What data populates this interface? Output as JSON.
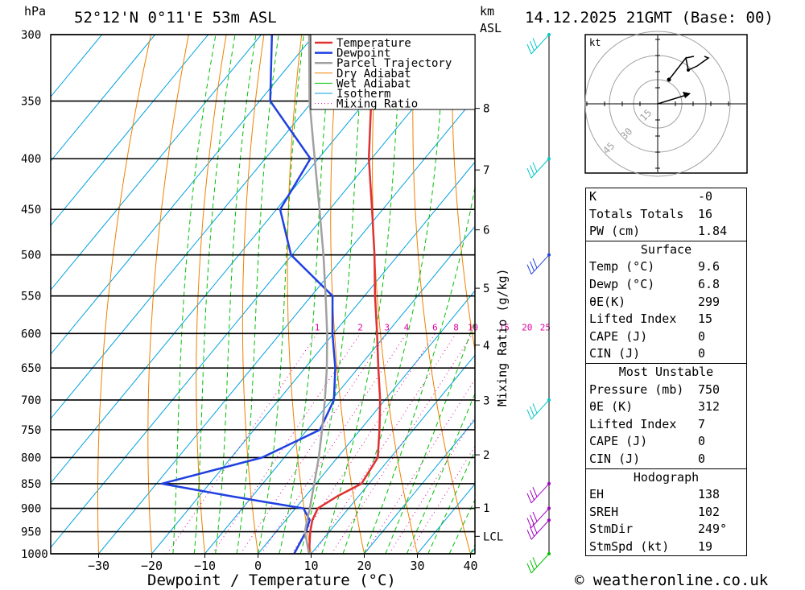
{
  "header": {
    "hpa_label": "hPa",
    "location": "52°12'N  0°11'E  53m  ASL",
    "km_label": "km",
    "asl_label": "ASL",
    "datetime": "14.12.2025  21GMT  (Base: 00)"
  },
  "chart_data": {
    "type": "skew-t",
    "title": "52°12'N  0°11'E  53m  ASL",
    "xlabel": "Dewpoint / Temperature (°C)",
    "ylabel": "hPa",
    "x_ticks": [
      -30,
      -20,
      -10,
      0,
      10,
      20,
      30,
      40
    ],
    "pressure_levels": [
      300,
      350,
      400,
      450,
      500,
      550,
      600,
      650,
      700,
      750,
      800,
      850,
      900,
      950,
      1000
    ],
    "km_ticks": [
      {
        "label": "8",
        "km": 8
      },
      {
        "label": "7",
        "km": 7
      },
      {
        "label": "6",
        "km": 6
      },
      {
        "label": "5",
        "km": 5
      },
      {
        "label": "4",
        "km": 4
      },
      {
        "label": "3",
        "km": 3
      },
      {
        "label": "2",
        "km": 2
      },
      {
        "label": "1",
        "km": 1
      },
      {
        "label": "LCL",
        "km": 0.45
      }
    ],
    "mixing_ratio_labels": [
      "1",
      "2",
      "3",
      "4",
      "6",
      "8",
      "10",
      "15",
      "20",
      "25"
    ],
    "mixing_ratio_axis_label": "Mixing Ratio (g/kg)",
    "legend": [
      {
        "name": "Temperature",
        "color": "#e03030"
      },
      {
        "name": "Dewpoint",
        "color": "#2040e0"
      },
      {
        "name": "Parcel Trajectory",
        "color": "#a0a0a0"
      },
      {
        "name": "Dry Adiabat",
        "color": "#f08000"
      },
      {
        "name": "Wet Adiabat",
        "color": "#00c000"
      },
      {
        "name": "Isotherm",
        "color": "#00a0e0"
      },
      {
        "name": "Mixing Ratio",
        "color": "#e000a0"
      }
    ],
    "series": [
      {
        "name": "Temperature",
        "points": [
          [
            1000,
            9.6
          ],
          [
            950,
            6.4
          ],
          [
            925,
            5.0
          ],
          [
            900,
            4.2
          ],
          [
            875,
            6.0
          ],
          [
            850,
            8.6
          ],
          [
            800,
            7.6
          ],
          [
            750,
            3.6
          ],
          [
            700,
            -0.9
          ],
          [
            650,
            -6.2
          ],
          [
            600,
            -11.8
          ],
          [
            550,
            -18.0
          ],
          [
            500,
            -24.5
          ],
          [
            450,
            -32.0
          ],
          [
            400,
            -40.5
          ],
          [
            350,
            -49.0
          ],
          [
            300,
            -57.0
          ]
        ]
      },
      {
        "name": "Dewpoint",
        "points": [
          [
            1000,
            6.8
          ],
          [
            950,
            5.6
          ],
          [
            925,
            4.5
          ],
          [
            900,
            1.5
          ],
          [
            875,
            -14.0
          ],
          [
            850,
            -29.0
          ],
          [
            800,
            -14.2
          ],
          [
            750,
            -7.6
          ],
          [
            700,
            -9.6
          ],
          [
            650,
            -14.3
          ],
          [
            600,
            -20.2
          ],
          [
            550,
            -26.0
          ],
          [
            500,
            -40.2
          ],
          [
            450,
            -49.3
          ],
          [
            400,
            -51.5
          ],
          [
            350,
            -68.0
          ],
          [
            300,
            -78.0
          ]
        ]
      },
      {
        "name": "Parcel Trajectory",
        "points": [
          [
            1000,
            9.6
          ],
          [
            950,
            5.4
          ],
          [
            925,
            4.0
          ],
          [
            900,
            2.7
          ],
          [
            850,
            -0.3
          ],
          [
            800,
            -3.5
          ],
          [
            750,
            -7.2
          ],
          [
            700,
            -11.3
          ],
          [
            650,
            -15.9
          ],
          [
            600,
            -21.2
          ],
          [
            550,
            -27.3
          ],
          [
            500,
            -34.1
          ],
          [
            450,
            -41.9
          ],
          [
            400,
            -50.7
          ],
          [
            350,
            -60.6
          ],
          [
            300,
            -71.0
          ]
        ]
      }
    ],
    "wind_barbs": [
      {
        "pressure": 300,
        "color": "#00c8c8"
      },
      {
        "pressure": 400,
        "color": "#00c8c8"
      },
      {
        "pressure": 500,
        "color": "#2040e0"
      },
      {
        "pressure": 700,
        "color": "#00c8c8"
      },
      {
        "pressure": 850,
        "color": "#a000c0"
      },
      {
        "pressure": 900,
        "color": "#a000c0"
      },
      {
        "pressure": 925,
        "color": "#a000c0"
      },
      {
        "pressure": 1000,
        "color": "#00c000"
      }
    ]
  },
  "hodograph": {
    "unit_label": "kt",
    "ring_labels": [
      "15",
      "30",
      "45"
    ]
  },
  "indices": {
    "k_label": "K",
    "k_value": "-0",
    "tt_label": "Totals Totals",
    "tt_value": "16",
    "pw_label": "PW (cm)",
    "pw_value": "1.84"
  },
  "surface": {
    "title": "Surface",
    "temp_label": "Temp (°C)",
    "temp_value": "9.6",
    "dewp_label": "Dewp (°C)",
    "dewp_value": "6.8",
    "thetae_label": "θE(K)",
    "thetae_value": "299",
    "li_label": "Lifted Index",
    "li_value": "15",
    "cape_label": "CAPE (J)",
    "cape_value": "0",
    "cin_label": "CIN (J)",
    "cin_value": "0"
  },
  "most_unstable": {
    "title": "Most Unstable",
    "pressure_label": "Pressure (mb)",
    "pressure_value": "750",
    "thetae_label": "θE (K)",
    "thetae_value": "312",
    "li_label": "Lifted Index",
    "li_value": "7",
    "cape_label": "CAPE (J)",
    "cape_value": "0",
    "cin_label": "CIN (J)",
    "cin_value": "0"
  },
  "hodograph_table": {
    "title": "Hodograph",
    "eh_label": "EH",
    "eh_value": "138",
    "sreh_label": "SREH",
    "sreh_value": "102",
    "stmdir_label": "StmDir",
    "stmdir_value": "249°",
    "stmspd_label": "StmSpd (kt)",
    "stmspd_value": "19"
  },
  "footer": {
    "copyright": "© weatheronline.co.uk"
  }
}
